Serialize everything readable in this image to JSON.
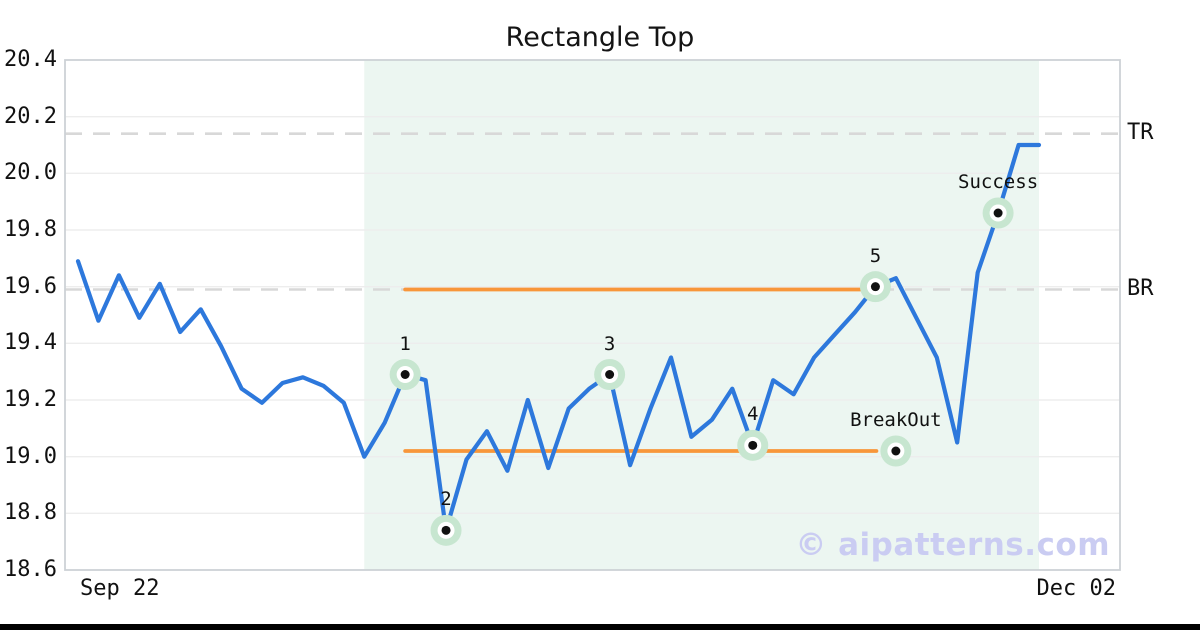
{
  "watermark": "© aipatterns.com",
  "chart_data": {
    "type": "line",
    "title": "Rectangle Top",
    "xlabel": "",
    "ylabel": "",
    "x_axis": {
      "start_label": "Sep 22",
      "end_label": "Dec 02"
    },
    "ylim": [
      18.6,
      20.4
    ],
    "yticks": [
      20.4,
      20.2,
      20.0,
      19.8,
      19.6,
      19.4,
      19.2,
      19.0,
      18.8,
      18.6
    ],
    "grid": "horizontal",
    "values": [
      19.69,
      19.48,
      19.64,
      19.49,
      19.61,
      19.44,
      19.52,
      19.39,
      19.24,
      19.19,
      19.26,
      19.28,
      19.25,
      19.19,
      19.0,
      19.12,
      19.29,
      19.27,
      18.74,
      18.99,
      19.09,
      18.95,
      19.2,
      18.96,
      19.17,
      19.24,
      19.29,
      18.97,
      19.17,
      19.35,
      19.07,
      19.13,
      19.24,
      19.04,
      19.27,
      19.22,
      19.35,
      19.43,
      19.51,
      19.6,
      19.63,
      19.49,
      19.35,
      19.05,
      19.65,
      19.86,
      20.1,
      20.1
    ],
    "pattern": {
      "name": "Rectangle Top",
      "shaded_region": {
        "start_index": 14,
        "end_index": 47
      },
      "rectangle": {
        "top": 19.59,
        "bottom": 19.02,
        "start_index": 16,
        "end_index": 39
      },
      "guides": [
        {
          "label": "TR",
          "value": 20.14
        },
        {
          "label": "BR",
          "value": 19.59
        }
      ]
    },
    "annotations": [
      {
        "label": "1",
        "index": 16,
        "value": 19.29
      },
      {
        "label": "2",
        "index": 18,
        "value": 18.74
      },
      {
        "label": "3",
        "index": 26,
        "value": 19.29
      },
      {
        "label": "4",
        "index": 33,
        "value": 19.04
      },
      {
        "label": "5",
        "index": 39,
        "value": 19.6
      },
      {
        "label": "BreakOut",
        "index": 40,
        "value": 19.02
      },
      {
        "label": "Success",
        "index": 45,
        "value": 19.86
      }
    ],
    "colors": {
      "line": "#2d78dc",
      "rectangle_lines": "#f8963a",
      "guide_dash": "#d8d8d8",
      "region_fill": "#ecf6f1",
      "marker_halo": "#c7e6d0",
      "marker_ring": "#ffffff",
      "marker_dot": "#111111",
      "grid": "#ededed",
      "border": "#cdd2d6",
      "text": "#111111",
      "watermark": "#caccf2",
      "footer_bar": "#000000"
    }
  }
}
